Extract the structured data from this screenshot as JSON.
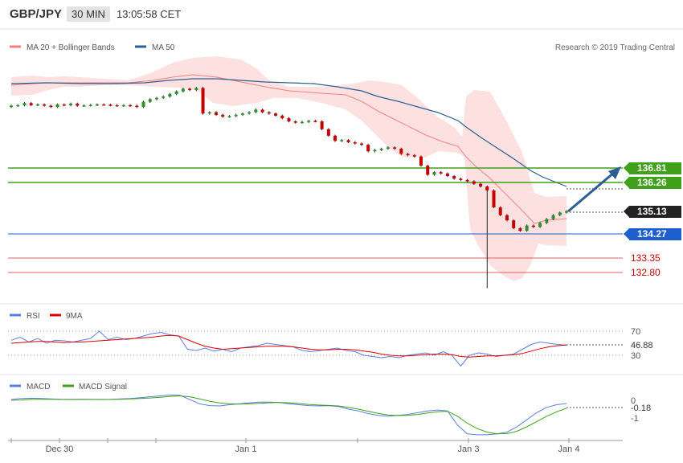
{
  "header": {
    "symbol": "GBP/JPY",
    "timeframe": "30 MIN",
    "time": "13:05:58 CET"
  },
  "legend_main": [
    {
      "label": "MA 20 + Bollinger Bands",
      "color": "#f08080"
    },
    {
      "label": "MA 50",
      "color": "#2c5f91"
    }
  ],
  "copyright": "Research © 2019 Trading Central",
  "price_levels": [
    {
      "value": "136.81",
      "color": "#41a01a"
    },
    {
      "value": "136.26",
      "color": "#41a01a"
    },
    {
      "value": "135.13",
      "color": "#222222"
    },
    {
      "value": "134.27",
      "color": "#1e5fd0"
    },
    {
      "value": "133.35",
      "color": "#cc0000"
    },
    {
      "value": "132.80",
      "color": "#cc0000"
    }
  ],
  "rsi_legend": [
    {
      "label": "RSI",
      "color": "#5a7fe0"
    },
    {
      "label": "9MA",
      "color": "#e00000"
    }
  ],
  "rsi_ticks": [
    "70",
    "30"
  ],
  "rsi_value": "46.88",
  "macd_legend": [
    {
      "label": "MACD",
      "color": "#5a7fe0"
    },
    {
      "label": "MACD Signal",
      "color": "#41a01a"
    }
  ],
  "macd_ticks": [
    "0",
    "-1"
  ],
  "macd_value": "-0.18",
  "x_labels": [
    "Dec 30",
    "Jan 1",
    "Jan 3",
    "Jan 4"
  ],
  "colors": {
    "up": "#2f8f2f",
    "down": "#c40000",
    "band": "#fde0e0",
    "ma50": "#2c5f91",
    "forecast": "#2c5f91"
  },
  "chart_data": [
    {
      "type": "candlestick",
      "title": "GBP/JPY",
      "timeframe": "30 MIN",
      "x_ticks": [
        "Dec 30",
        "Jan 1",
        "Jan 3",
        "Jan 4"
      ],
      "close_series": [
        139.2,
        139.22,
        139.3,
        139.22,
        139.25,
        139.2,
        139.15,
        139.25,
        139.22,
        139.28,
        139.2,
        139.21,
        139.23,
        139.25,
        139.24,
        139.22,
        139.2,
        139.22,
        139.2,
        139.15,
        139.35,
        139.45,
        139.5,
        139.55,
        139.65,
        139.75,
        139.85,
        139.8,
        139.88,
        138.9,
        138.95,
        138.85,
        138.78,
        138.8,
        138.85,
        138.9,
        138.95,
        139.05,
        138.95,
        138.9,
        138.82,
        138.72,
        138.6,
        138.55,
        138.58,
        138.62,
        138.6,
        138.3,
        138.05,
        137.85,
        137.88,
        137.8,
        137.75,
        137.7,
        137.45,
        137.5,
        137.55,
        137.6,
        137.55,
        137.35,
        137.3,
        137.25,
        136.9,
        136.55,
        136.65,
        136.6,
        136.5,
        136.4,
        136.35,
        136.3,
        136.2,
        136.1,
        135.95,
        135.3,
        135.0,
        134.8,
        134.5,
        134.4,
        134.6,
        134.55,
        134.7,
        134.85,
        135.0,
        135.1,
        135.15
      ],
      "price_levels": [
        136.81,
        136.26,
        135.13,
        134.27,
        133.35,
        132.8
      ],
      "current_price": 135.13,
      "low_spike": 132.2,
      "series": [
        {
          "name": "MA 20 + Bollinger Bands"
        },
        {
          "name": "MA 50"
        }
      ]
    },
    {
      "type": "line",
      "title": "RSI",
      "y_ticks": [
        70,
        30
      ],
      "current": 46.88,
      "series": [
        {
          "name": "RSI",
          "values": [
            55,
            60,
            52,
            58,
            50,
            55,
            54,
            52,
            55,
            58,
            70,
            56,
            60,
            56,
            58,
            62,
            66,
            68,
            64,
            62,
            40,
            38,
            42,
            37,
            40,
            36,
            42,
            44,
            46,
            50,
            48,
            46,
            44,
            38,
            36,
            38,
            40,
            42,
            38,
            36,
            30,
            28,
            26,
            28,
            26,
            30,
            32,
            34,
            30,
            36,
            30,
            12,
            30,
            34,
            32,
            28,
            30,
            32,
            40,
            48,
            52,
            50,
            48,
            46.88
          ]
        },
        {
          "name": "9MA",
          "values": [
            50,
            51,
            52,
            53,
            53,
            52,
            51,
            52,
            52,
            53,
            54,
            55,
            56,
            57,
            58,
            59,
            60,
            62,
            63,
            62,
            56,
            50,
            45,
            42,
            40,
            41,
            42,
            43,
            44,
            45,
            45,
            45,
            44,
            42,
            40,
            39,
            39,
            40,
            40,
            39,
            37,
            35,
            32,
            30,
            29,
            29,
            30,
            31,
            32,
            32,
            31,
            28,
            27,
            28,
            29,
            29,
            30,
            31,
            33,
            37,
            41,
            44,
            46,
            47
          ]
        }
      ]
    },
    {
      "type": "line",
      "title": "MACD",
      "y_ticks": [
        0,
        -1
      ],
      "current": -0.18,
      "series": [
        {
          "name": "MACD",
          "values": [
            0.05,
            0.1,
            0.12,
            0.1,
            0.08,
            0.06,
            0.05,
            0.06,
            0.05,
            0.04,
            0.05,
            0.08,
            0.1,
            0.15,
            0.2,
            0.25,
            0.3,
            0.28,
            0.05,
            -0.2,
            -0.3,
            -0.32,
            -0.25,
            -0.2,
            -0.15,
            -0.1,
            -0.1,
            -0.12,
            -0.2,
            -0.25,
            -0.3,
            -0.32,
            -0.3,
            -0.35,
            -0.5,
            -0.6,
            -0.75,
            -0.85,
            -0.9,
            -0.85,
            -0.8,
            -0.7,
            -0.6,
            -0.55,
            -0.6,
            -1.4,
            -1.9,
            -1.95,
            -1.95,
            -1.9,
            -1.8,
            -1.5,
            -1.1,
            -0.7,
            -0.4,
            -0.25,
            -0.18
          ]
        },
        {
          "name": "MACD Signal",
          "values": [
            0.0,
            0.02,
            0.05,
            0.06,
            0.06,
            0.05,
            0.05,
            0.05,
            0.05,
            0.05,
            0.05,
            0.06,
            0.08,
            0.1,
            0.13,
            0.17,
            0.22,
            0.25,
            0.2,
            0.08,
            -0.05,
            -0.15,
            -0.2,
            -0.22,
            -0.2,
            -0.17,
            -0.14,
            -0.12,
            -0.14,
            -0.18,
            -0.23,
            -0.27,
            -0.29,
            -0.32,
            -0.4,
            -0.5,
            -0.62,
            -0.74,
            -0.83,
            -0.86,
            -0.85,
            -0.8,
            -0.72,
            -0.65,
            -0.62,
            -0.9,
            -1.3,
            -1.6,
            -1.8,
            -1.9,
            -1.88,
            -1.75,
            -1.5,
            -1.2,
            -0.9,
            -0.65,
            -0.45
          ]
        }
      ]
    }
  ]
}
